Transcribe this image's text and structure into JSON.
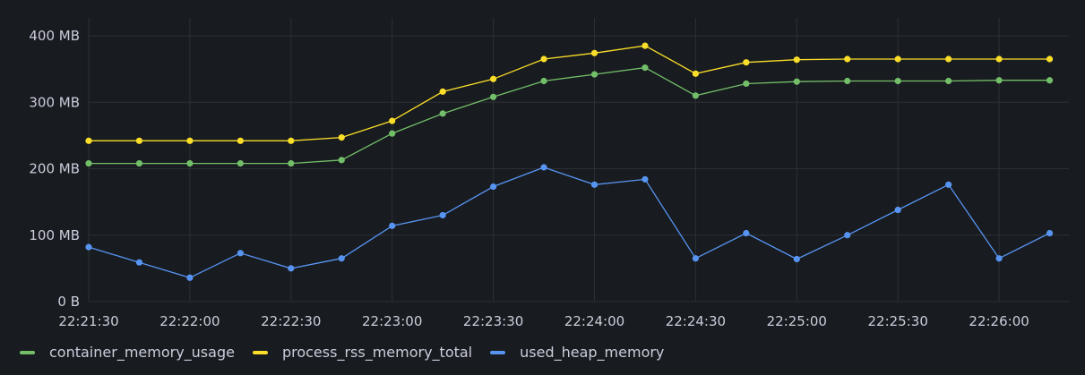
{
  "chart_data": {
    "type": "line",
    "x": [
      "22:21:30",
      "22:21:45",
      "22:22:00",
      "22:22:15",
      "22:22:30",
      "22:22:45",
      "22:23:00",
      "22:23:15",
      "22:23:30",
      "22:23:45",
      "22:24:00",
      "22:24:15",
      "22:24:30",
      "22:24:45",
      "22:25:00",
      "22:25:15",
      "22:25:30",
      "22:25:45",
      "22:26:00",
      "22:26:15"
    ],
    "x_tick_labels": [
      "22:21:30",
      "22:22:00",
      "22:22:30",
      "22:23:00",
      "22:23:30",
      "22:24:00",
      "22:24:30",
      "22:25:00",
      "22:25:30",
      "22:26:00"
    ],
    "y_tick_labels": [
      "0 B",
      "100 MB",
      "200 MB",
      "300 MB",
      "400 MB"
    ],
    "y_ticks": [
      0,
      100,
      200,
      300,
      400
    ],
    "ylim": [
      0,
      400
    ],
    "y_unit": "MB",
    "grid": true,
    "legend_position": "bottom-left",
    "series": [
      {
        "name": "container_memory_usage",
        "color": "#73bf69",
        "values": [
          208,
          208,
          208,
          208,
          208,
          213,
          253,
          283,
          308,
          332,
          342,
          352,
          310,
          328,
          331,
          332,
          332,
          332,
          333,
          333
        ]
      },
      {
        "name": "process_rss_memory_total",
        "color": "#fade2a",
        "values": [
          242,
          242,
          242,
          242,
          242,
          247,
          272,
          316,
          335,
          365,
          374,
          385,
          343,
          360,
          364,
          365,
          365,
          365,
          365,
          365
        ]
      },
      {
        "name": "used_heap_memory",
        "color": "#5794f2",
        "values": [
          82,
          59,
          36,
          73,
          50,
          65,
          114,
          130,
          173,
          202,
          176,
          184,
          65,
          103,
          64,
          100,
          138,
          176,
          65,
          103
        ]
      }
    ]
  }
}
